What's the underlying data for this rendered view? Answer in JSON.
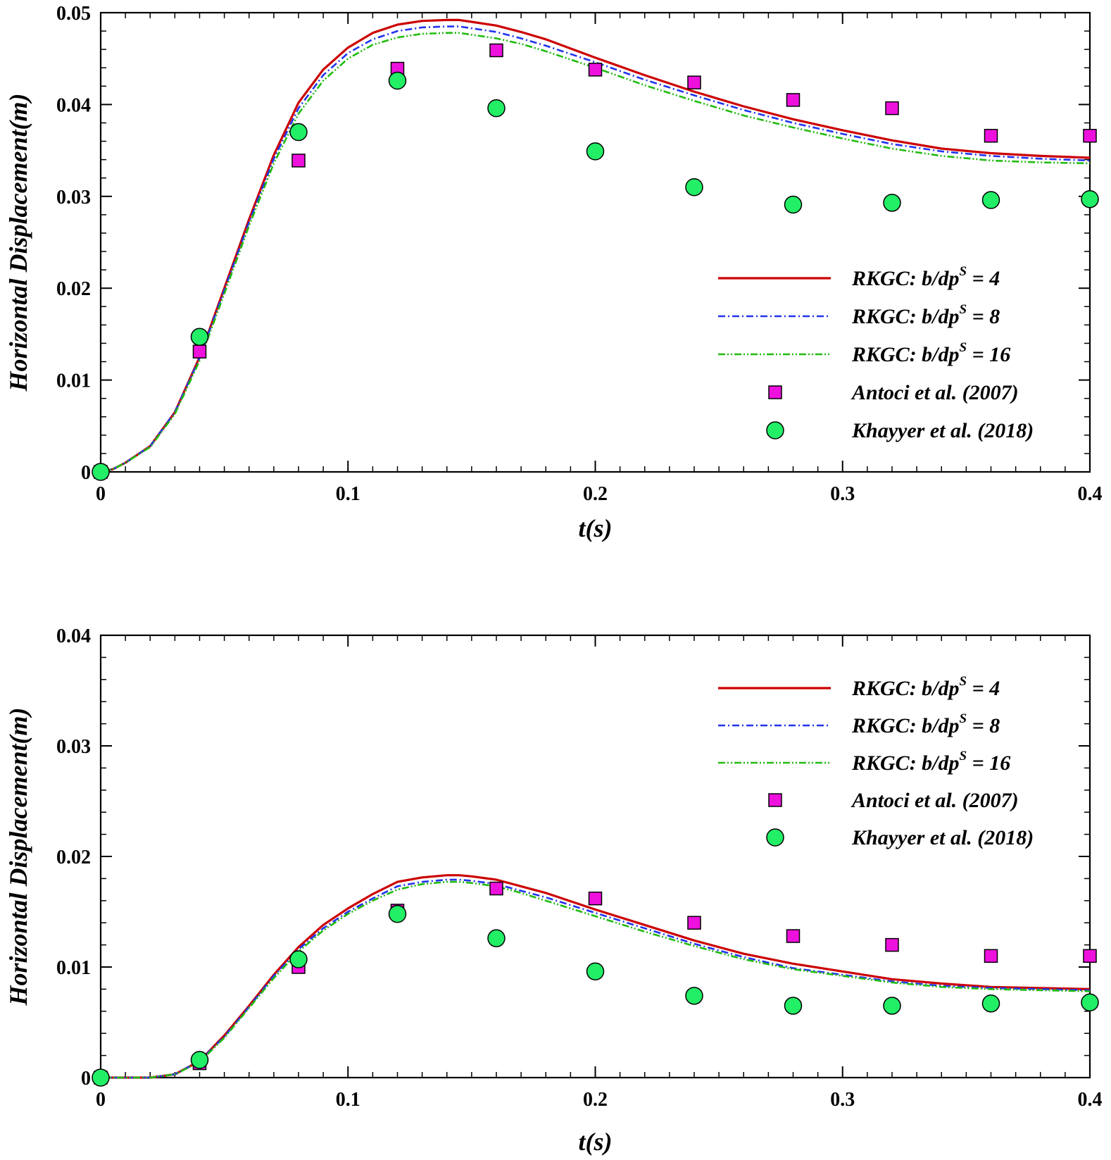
{
  "colors": {
    "rkgc4": "#cc0000",
    "rkgc8": "#2233ee",
    "rkgc16": "#22bb11",
    "antoci": "#ee11dd",
    "khayyer": "#22ee66"
  },
  "chart_data": [
    {
      "type": "line",
      "xlabel": "t(s)",
      "ylabel": "Horizontal Displacement(m)",
      "xlim": [
        0,
        0.4
      ],
      "ylim": [
        0,
        0.05
      ],
      "xticks": [
        "0",
        "0.1",
        "0.2",
        "0.3",
        "0.4"
      ],
      "yticks": [
        "0",
        "0.01",
        "0.02",
        "0.03",
        "0.04",
        "0.05"
      ],
      "legend_position": "right-middle",
      "series": [
        {
          "name": "RKGC: b/dp",
          "sup": "S",
          "tail": " = 4",
          "color_key": "rkgc4",
          "style": "solid",
          "x": [
            0,
            0.005,
            0.01,
            0.02,
            0.03,
            0.04,
            0.05,
            0.06,
            0.07,
            0.08,
            0.09,
            0.1,
            0.11,
            0.12,
            0.13,
            0.14,
            0.145,
            0.15,
            0.16,
            0.17,
            0.18,
            0.19,
            0.2,
            0.22,
            0.24,
            0.26,
            0.28,
            0.3,
            0.32,
            0.34,
            0.36,
            0.38,
            0.4
          ],
          "y": [
            0,
            0.0003,
            0.001,
            0.0028,
            0.0065,
            0.0125,
            0.02,
            0.0275,
            0.0345,
            0.0402,
            0.0438,
            0.0462,
            0.0478,
            0.0487,
            0.0491,
            0.0492,
            0.0492,
            0.049,
            0.0486,
            0.0479,
            0.0471,
            0.0461,
            0.0451,
            0.0432,
            0.0414,
            0.0398,
            0.0384,
            0.0372,
            0.0361,
            0.0352,
            0.0347,
            0.0344,
            0.0342
          ]
        },
        {
          "name": "RKGC: b/dp",
          "sup": "S",
          "tail": " = 8",
          "color_key": "rkgc8",
          "style": "dashdot",
          "x": [
            0,
            0.005,
            0.01,
            0.02,
            0.03,
            0.04,
            0.05,
            0.06,
            0.07,
            0.08,
            0.09,
            0.1,
            0.11,
            0.12,
            0.13,
            0.14,
            0.145,
            0.15,
            0.16,
            0.17,
            0.18,
            0.19,
            0.2,
            0.22,
            0.24,
            0.26,
            0.28,
            0.3,
            0.32,
            0.34,
            0.36,
            0.38,
            0.4
          ],
          "y": [
            0,
            0.0003,
            0.001,
            0.0028,
            0.0065,
            0.0124,
            0.0198,
            0.0272,
            0.0341,
            0.0396,
            0.0432,
            0.0456,
            0.0471,
            0.048,
            0.0484,
            0.0485,
            0.0485,
            0.0483,
            0.0479,
            0.0472,
            0.0464,
            0.0455,
            0.0446,
            0.0427,
            0.041,
            0.0394,
            0.038,
            0.0368,
            0.0357,
            0.0349,
            0.0344,
            0.0341,
            0.0339
          ]
        },
        {
          "name": "RKGC: b/dp",
          "sup": "S",
          "tail": " = 16",
          "color_key": "rkgc16",
          "style": "dashdotdot",
          "x": [
            0,
            0.005,
            0.01,
            0.02,
            0.03,
            0.04,
            0.05,
            0.06,
            0.07,
            0.08,
            0.09,
            0.1,
            0.11,
            0.12,
            0.13,
            0.14,
            0.145,
            0.15,
            0.16,
            0.17,
            0.18,
            0.19,
            0.2,
            0.22,
            0.24,
            0.26,
            0.28,
            0.3,
            0.32,
            0.34,
            0.36,
            0.38,
            0.4
          ],
          "y": [
            0,
            0.0003,
            0.001,
            0.0027,
            0.0063,
            0.0121,
            0.0194,
            0.0268,
            0.0336,
            0.039,
            0.0426,
            0.045,
            0.0465,
            0.0473,
            0.0477,
            0.0478,
            0.0478,
            0.0476,
            0.0472,
            0.0466,
            0.0458,
            0.0449,
            0.044,
            0.0421,
            0.0404,
            0.0388,
            0.0375,
            0.0363,
            0.0352,
            0.0344,
            0.0339,
            0.0337,
            0.0336
          ]
        },
        {
          "name": "Antoci et al. (2007)",
          "sup": "",
          "tail": "",
          "color_key": "antoci",
          "marker": "square",
          "x": [
            0,
            0.04,
            0.08,
            0.12,
            0.16,
            0.2,
            0.24,
            0.28,
            0.32,
            0.36,
            0.4
          ],
          "y": [
            0,
            0.0131,
            0.0339,
            0.0439,
            0.0459,
            0.0438,
            0.0424,
            0.0405,
            0.0396,
            0.0366,
            0.0366
          ]
        },
        {
          "name": "Khayyer et al. (2018)",
          "sup": "",
          "tail": "",
          "color_key": "khayyer",
          "marker": "circle",
          "x": [
            0,
            0.04,
            0.08,
            0.12,
            0.16,
            0.2,
            0.24,
            0.28,
            0.32,
            0.36,
            0.4
          ],
          "y": [
            0,
            0.0147,
            0.037,
            0.0426,
            0.0396,
            0.0349,
            0.031,
            0.0291,
            0.0293,
            0.0296,
            0.0297
          ]
        }
      ]
    },
    {
      "type": "line",
      "xlabel": "t(s)",
      "ylabel": "Horizontal Displacement(m)",
      "xlim": [
        0,
        0.4
      ],
      "ylim": [
        0,
        0.04
      ],
      "xticks": [
        "0",
        "0.1",
        "0.2",
        "0.3",
        "0.4"
      ],
      "yticks": [
        "0",
        "0.01",
        "0.02",
        "0.03",
        "0.04"
      ],
      "legend_position": "top-right",
      "series": [
        {
          "name": "RKGC: b/dp",
          "sup": "S",
          "tail": " = 4",
          "color_key": "rkgc4",
          "style": "solid",
          "x": [
            0,
            0.01,
            0.02,
            0.03,
            0.04,
            0.05,
            0.06,
            0.07,
            0.08,
            0.09,
            0.1,
            0.11,
            0.12,
            0.13,
            0.14,
            0.145,
            0.15,
            0.16,
            0.17,
            0.18,
            0.2,
            0.22,
            0.24,
            0.26,
            0.28,
            0.3,
            0.32,
            0.34,
            0.36,
            0.38,
            0.4
          ],
          "y": [
            0,
            0,
            0,
            0.0003,
            0.0015,
            0.0038,
            0.0065,
            0.0093,
            0.0118,
            0.0138,
            0.0153,
            0.0166,
            0.0177,
            0.0181,
            0.0183,
            0.0183,
            0.0182,
            0.0179,
            0.0173,
            0.0167,
            0.0152,
            0.0138,
            0.0124,
            0.0112,
            0.0103,
            0.0096,
            0.0089,
            0.0085,
            0.0082,
            0.0081,
            0.008
          ]
        },
        {
          "name": "RKGC: b/dp",
          "sup": "S",
          "tail": " = 8",
          "color_key": "rkgc8",
          "style": "dashdot",
          "x": [
            0,
            0.01,
            0.02,
            0.03,
            0.04,
            0.05,
            0.06,
            0.07,
            0.08,
            0.09,
            0.1,
            0.11,
            0.12,
            0.13,
            0.14,
            0.145,
            0.15,
            0.16,
            0.17,
            0.18,
            0.2,
            0.22,
            0.24,
            0.26,
            0.28,
            0.3,
            0.32,
            0.34,
            0.36,
            0.38,
            0.4
          ],
          "y": [
            0,
            0,
            0,
            0.0003,
            0.0015,
            0.0037,
            0.0064,
            0.0092,
            0.0116,
            0.0135,
            0.015,
            0.0162,
            0.0173,
            0.0177,
            0.0179,
            0.0179,
            0.0178,
            0.0175,
            0.0169,
            0.0163,
            0.0149,
            0.0135,
            0.0121,
            0.0109,
            0.0099,
            0.0093,
            0.0087,
            0.0083,
            0.0081,
            0.008,
            0.0079
          ]
        },
        {
          "name": "RKGC: b/dp",
          "sup": "S",
          "tail": " = 16",
          "color_key": "rkgc16",
          "style": "dashdotdot",
          "x": [
            0,
            0.01,
            0.02,
            0.03,
            0.04,
            0.05,
            0.06,
            0.07,
            0.08,
            0.09,
            0.1,
            0.11,
            0.12,
            0.13,
            0.14,
            0.145,
            0.15,
            0.16,
            0.17,
            0.18,
            0.2,
            0.22,
            0.24,
            0.26,
            0.28,
            0.3,
            0.32,
            0.34,
            0.36,
            0.38,
            0.4
          ],
          "y": [
            0,
            0,
            0,
            0.0003,
            0.0014,
            0.0036,
            0.0063,
            0.009,
            0.0114,
            0.0133,
            0.0148,
            0.016,
            0.017,
            0.0175,
            0.0177,
            0.0177,
            0.0176,
            0.0173,
            0.0167,
            0.016,
            0.0146,
            0.0132,
            0.0119,
            0.0107,
            0.0098,
            0.0092,
            0.0086,
            0.0082,
            0.008,
            0.0079,
            0.0078
          ]
        },
        {
          "name": "Antoci et al. (2007)",
          "sup": "",
          "tail": "",
          "color_key": "antoci",
          "marker": "square",
          "x": [
            0,
            0.04,
            0.08,
            0.12,
            0.16,
            0.2,
            0.24,
            0.28,
            0.32,
            0.36,
            0.4
          ],
          "y": [
            0,
            0.0013,
            0.01,
            0.0151,
            0.0171,
            0.0162,
            0.014,
            0.0128,
            0.012,
            0.011,
            0.011
          ]
        },
        {
          "name": "Khayyer et al. (2018)",
          "sup": "",
          "tail": "",
          "color_key": "khayyer",
          "marker": "circle",
          "x": [
            0,
            0.04,
            0.08,
            0.12,
            0.16,
            0.2,
            0.24,
            0.28,
            0.32,
            0.36,
            0.4
          ],
          "y": [
            0,
            0.0016,
            0.0107,
            0.0148,
            0.0126,
            0.0096,
            0.0074,
            0.0065,
            0.0065,
            0.0067,
            0.0068
          ]
        }
      ]
    }
  ]
}
